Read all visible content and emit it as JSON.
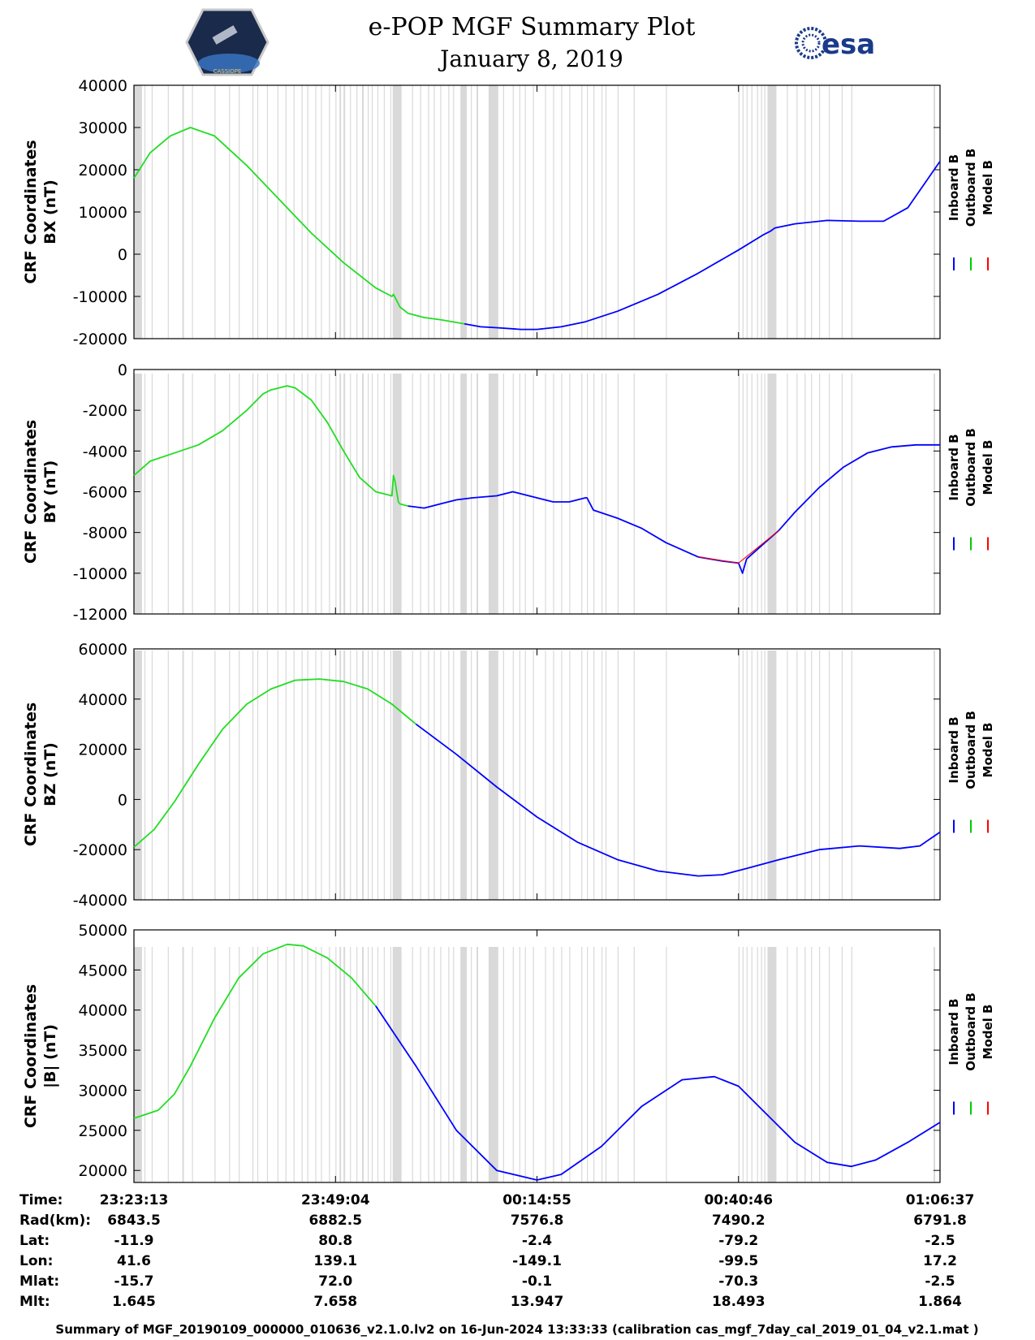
{
  "header": {
    "title": "e-POP MGF Summary Plot",
    "date": "January 8, 2019",
    "left_logo_text": "CASSIOPE",
    "right_logo_text": "esa"
  },
  "legend": {
    "entries": [
      {
        "label": "Inboard B",
        "color": "#0000ff"
      },
      {
        "label": "Outboard B",
        "color": "#00cc00"
      },
      {
        "label": "Model B",
        "color": "#ff0000"
      }
    ]
  },
  "colors": {
    "inboard": "#0000ff",
    "outboard": "#22dd22",
    "model": "#ff0000",
    "gap": "#d9d9d9",
    "axis": "#000000"
  },
  "chart_data": [
    {
      "type": "line",
      "ylabel_line1": "CRF Coordinates",
      "ylabel_line2": "BX (nT)",
      "ylim": [
        -20000,
        40000
      ],
      "yticks": [
        -20000,
        -10000,
        0,
        10000,
        20000,
        30000,
        40000
      ],
      "xlim": [
        0,
        1
      ],
      "switch_x": 0.41,
      "series": [
        {
          "name": "Outboard B",
          "x": [
            0,
            0.02,
            0.045,
            0.07,
            0.1,
            0.14,
            0.18,
            0.22,
            0.26,
            0.3,
            0.32,
            0.322,
            0.326,
            0.33,
            0.34,
            0.36,
            0.38,
            0.41
          ],
          "values": [
            18000,
            24000,
            28000,
            30000,
            28000,
            21000,
            13000,
            5000,
            -2000,
            -8000,
            -10000,
            -9500,
            -11000,
            -12500,
            -14000,
            -15000,
            -15500,
            -16500
          ]
        },
        {
          "name": "Inboard B",
          "x": [
            0.41,
            0.43,
            0.45,
            0.48,
            0.5,
            0.53,
            0.56,
            0.6,
            0.65,
            0.7,
            0.75,
            0.78,
            0.79,
            0.795,
            0.82,
            0.86,
            0.9,
            0.93,
            0.96,
            1.0
          ],
          "values": [
            -16500,
            -17200,
            -17400,
            -17800,
            -17800,
            -17200,
            -16000,
            -13500,
            -9500,
            -4500,
            1000,
            4500,
            5500,
            6200,
            7200,
            8000,
            7800,
            7800,
            11000,
            22000
          ]
        }
      ]
    },
    {
      "type": "line",
      "ylabel_line1": "CRF Coordinates",
      "ylabel_line2": "BY (nT)",
      "ylim": [
        -12000,
        0
      ],
      "yticks": [
        -12000,
        -10000,
        -8000,
        -6000,
        -4000,
        -2000,
        0
      ],
      "xlim": [
        0,
        1
      ],
      "switch_x": 0.34,
      "series": [
        {
          "name": "Outboard B",
          "x": [
            0,
            0.02,
            0.05,
            0.08,
            0.11,
            0.14,
            0.16,
            0.17,
            0.19,
            0.2,
            0.22,
            0.24,
            0.26,
            0.28,
            0.3,
            0.32,
            0.322,
            0.324,
            0.328,
            0.33,
            0.34
          ],
          "values": [
            -5200,
            -4500,
            -4100,
            -3700,
            -3000,
            -2000,
            -1200,
            -1000,
            -800,
            -900,
            -1500,
            -2600,
            -4000,
            -5300,
            -6000,
            -6200,
            -5200,
            -5500,
            -6500,
            -6600,
            -6700
          ]
        },
        {
          "name": "Inboard B",
          "x": [
            0.34,
            0.36,
            0.38,
            0.4,
            0.42,
            0.45,
            0.47,
            0.5,
            0.52,
            0.54,
            0.56,
            0.562,
            0.57,
            0.6,
            0.63,
            0.66,
            0.7,
            0.73,
            0.75,
            0.755,
            0.76,
            0.78,
            0.8,
            0.82,
            0.85,
            0.88,
            0.91,
            0.94,
            0.97,
            1.0
          ],
          "values": [
            -6700,
            -6800,
            -6600,
            -6400,
            -6300,
            -6200,
            -6000,
            -6300,
            -6500,
            -6500,
            -6300,
            -6300,
            -6900,
            -7300,
            -7800,
            -8500,
            -9200,
            -9400,
            -9500,
            -10000,
            -9300,
            -8600,
            -7900,
            -7000,
            -5800,
            -4800,
            -4100,
            -3800,
            -3700,
            -3700
          ]
        },
        {
          "name": "Model B",
          "x": [
            0.7,
            0.75,
            0.8
          ],
          "values": [
            -9200,
            -9500,
            -7900
          ]
        }
      ]
    },
    {
      "type": "line",
      "ylabel_line1": "CRF Coordinates",
      "ylabel_line2": "BZ (nT)",
      "ylim": [
        -40000,
        60000
      ],
      "yticks": [
        -40000,
        -20000,
        0,
        20000,
        40000,
        60000
      ],
      "xlim": [
        0,
        1
      ],
      "switch_x": 0.35,
      "series": [
        {
          "name": "Outboard B",
          "x": [
            0,
            0.025,
            0.05,
            0.08,
            0.11,
            0.14,
            0.17,
            0.2,
            0.23,
            0.26,
            0.29,
            0.32,
            0.35
          ],
          "values": [
            -19000,
            -12000,
            -1000,
            14000,
            28000,
            38000,
            44000,
            47500,
            48000,
            47000,
            44000,
            38000,
            30000
          ]
        },
        {
          "name": "Inboard B",
          "x": [
            0.35,
            0.4,
            0.45,
            0.5,
            0.55,
            0.6,
            0.65,
            0.7,
            0.73,
            0.76,
            0.8,
            0.85,
            0.9,
            0.95,
            0.975,
            1.0
          ],
          "values": [
            30000,
            18000,
            5000,
            -7000,
            -17000,
            -24000,
            -28500,
            -30500,
            -30000,
            -27500,
            -24000,
            -20000,
            -18500,
            -19500,
            -18500,
            -13000
          ]
        }
      ]
    },
    {
      "type": "line",
      "ylabel_line1": "CRF Coordinates",
      "ylabel_line2": "|B| (nT)",
      "ylim": [
        18500,
        50000
      ],
      "yticks": [
        20000,
        25000,
        30000,
        35000,
        40000,
        45000,
        50000
      ],
      "xlim": [
        0,
        1
      ],
      "switch_x": 0.3,
      "series": [
        {
          "name": "Outboard B",
          "x": [
            0,
            0.03,
            0.05,
            0.07,
            0.1,
            0.13,
            0.16,
            0.19,
            0.21,
            0.24,
            0.27,
            0.3
          ],
          "values": [
            26500,
            27500,
            29500,
            33000,
            39000,
            44000,
            47000,
            48200,
            48000,
            46500,
            44000,
            40500
          ]
        },
        {
          "name": "Inboard B",
          "x": [
            0.3,
            0.35,
            0.4,
            0.45,
            0.5,
            0.53,
            0.58,
            0.63,
            0.68,
            0.72,
            0.75,
            0.78,
            0.82,
            0.86,
            0.89,
            0.92,
            0.96,
            1.0
          ],
          "values": [
            40500,
            33000,
            25000,
            20000,
            18800,
            19500,
            23000,
            28000,
            31300,
            31700,
            30500,
            27500,
            23500,
            21000,
            20500,
            21300,
            23500,
            26000
          ]
        }
      ]
    }
  ],
  "gap_intervals": [
    [
      0.0,
      0.01
    ],
    [
      0.013,
      0.014
    ],
    [
      0.022,
      0.023
    ],
    [
      0.042,
      0.043
    ],
    [
      0.06,
      0.062
    ],
    [
      0.072,
      0.073
    ],
    [
      0.1,
      0.101
    ],
    [
      0.118,
      0.119
    ],
    [
      0.13,
      0.131
    ],
    [
      0.147,
      0.148
    ],
    [
      0.153,
      0.154
    ],
    [
      0.165,
      0.166
    ],
    [
      0.178,
      0.179
    ],
    [
      0.188,
      0.189
    ],
    [
      0.198,
      0.199
    ],
    [
      0.208,
      0.209
    ],
    [
      0.215,
      0.216
    ],
    [
      0.225,
      0.226
    ],
    [
      0.232,
      0.233
    ],
    [
      0.242,
      0.243
    ],
    [
      0.25,
      0.251
    ],
    [
      0.255,
      0.257
    ],
    [
      0.26,
      0.262
    ],
    [
      0.268,
      0.269
    ],
    [
      0.276,
      0.277
    ],
    [
      0.283,
      0.285
    ],
    [
      0.29,
      0.291
    ],
    [
      0.295,
      0.296
    ],
    [
      0.302,
      0.303
    ],
    [
      0.31,
      0.311
    ],
    [
      0.318,
      0.319
    ],
    [
      0.321,
      0.332
    ],
    [
      0.345,
      0.346
    ],
    [
      0.355,
      0.356
    ],
    [
      0.365,
      0.366
    ],
    [
      0.372,
      0.373
    ],
    [
      0.38,
      0.381
    ],
    [
      0.39,
      0.391
    ],
    [
      0.396,
      0.397
    ],
    [
      0.405,
      0.413
    ],
    [
      0.418,
      0.419
    ],
    [
      0.425,
      0.427
    ],
    [
      0.44,
      0.452
    ],
    [
      0.458,
      0.459
    ],
    [
      0.47,
      0.471
    ],
    [
      0.478,
      0.479
    ],
    [
      0.485,
      0.486
    ],
    [
      0.495,
      0.496
    ],
    [
      0.51,
      0.511
    ],
    [
      0.52,
      0.521
    ],
    [
      0.53,
      0.531
    ],
    [
      0.54,
      0.541
    ],
    [
      0.555,
      0.556
    ],
    [
      0.562,
      0.563
    ],
    [
      0.57,
      0.571
    ],
    [
      0.58,
      0.581
    ],
    [
      0.585,
      0.586
    ],
    [
      0.6,
      0.601
    ],
    [
      0.62,
      0.621
    ],
    [
      0.66,
      0.661
    ],
    [
      0.75,
      0.751
    ],
    [
      0.755,
      0.756
    ],
    [
      0.76,
      0.761
    ],
    [
      0.766,
      0.767
    ],
    [
      0.773,
      0.774
    ],
    [
      0.778,
      0.779
    ],
    [
      0.782,
      0.783
    ],
    [
      0.786,
      0.797
    ],
    [
      0.81,
      0.811
    ],
    [
      0.822,
      0.823
    ],
    [
      0.832,
      0.833
    ],
    [
      0.84,
      0.841
    ],
    [
      0.85,
      0.851
    ],
    [
      0.862,
      0.863
    ],
    [
      0.878,
      0.879
    ],
    [
      0.89,
      0.891
    ],
    [
      0.992,
      0.994
    ]
  ],
  "time_table": {
    "row_labels": [
      "Time:",
      "Rad(km):",
      "Lat:",
      "Lon:",
      "Mlat:",
      "Mlt:"
    ],
    "columns": [
      [
        "23:23:13",
        "6843.5",
        "-11.9",
        "41.6",
        "-15.7",
        "1.645"
      ],
      [
        "23:49:04",
        "6882.5",
        "80.8",
        "139.1",
        "72.0",
        "7.658"
      ],
      [
        "00:14:55",
        "7576.8",
        "-2.4",
        "-149.1",
        "-0.1",
        "13.947"
      ],
      [
        "00:40:46",
        "7490.2",
        "-79.2",
        "-99.5",
        "-70.3",
        "18.493"
      ],
      [
        "01:06:37",
        "6791.8",
        "-2.5",
        "17.2",
        "-2.5",
        "1.864"
      ]
    ]
  },
  "footer": {
    "caption": "Summary of MGF_20190109_000000_010636_v2.1.0.lv2 on 16-Jun-2024 13:33:33 (calibration cas_mgf_7day_cal_2019_01_04_v2.1.mat )"
  }
}
